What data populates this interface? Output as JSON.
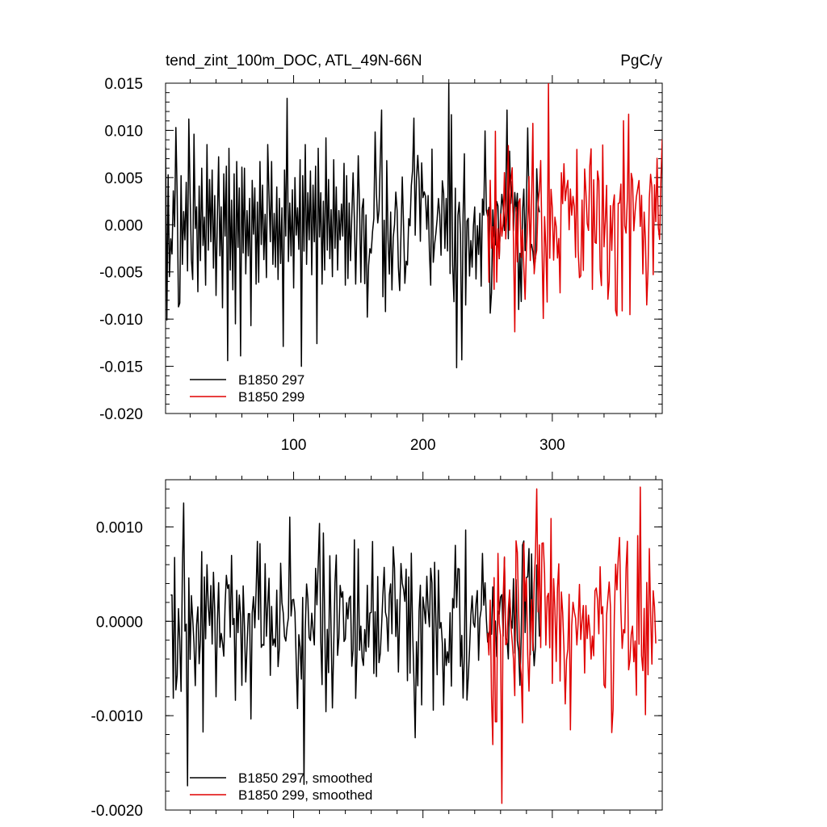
{
  "chart_data": [
    {
      "type": "line",
      "title_left": "tend_zint_100m_DOC, ATL_49N-66N",
      "title_right": "PgC/y",
      "xlim": [
        1,
        385
      ],
      "ylim": [
        -0.02,
        0.015
      ],
      "x_ticks": [
        100,
        200,
        300
      ],
      "x_tick_labels": [
        "100",
        "200",
        "300"
      ],
      "y_ticks": [
        -0.02,
        -0.015,
        -0.01,
        -0.005,
        0.0,
        0.005,
        0.01,
        0.015
      ],
      "y_tick_labels": [
        "-0.020",
        "-0.015",
        "-0.010",
        "-0.005",
        "0.000",
        "0.005",
        "0.010",
        "0.015"
      ],
      "grid": false,
      "legend_position": "bottom-left",
      "series": [
        {
          "name": "B1850 297",
          "color": "#000000",
          "x_start": 1,
          "values": [
            0.0082,
            -0.0101,
            0.0053,
            -0.0055,
            -0.0015,
            -0.0031,
            0.0036,
            -0.0002,
            0.0103,
            0.003,
            -0.0087,
            -0.0083,
            0.0052,
            -0.0042,
            0.0014,
            -0.0016,
            0.0045,
            -0.0049,
            0.0112,
            0.0033,
            -0.0037,
            -0.0058,
            0.0096,
            -0.0004,
            0.0019,
            -0.0071,
            0.0041,
            -0.0038,
            0.006,
            -0.0022,
            0.0008,
            -0.0064,
            0.0085,
            -0.0027,
            0.0048,
            -0.0018,
            0.0058,
            -0.0046,
            0.0031,
            -0.0075,
            0.0006,
            0.0072,
            -0.0033,
            0.0019,
            -0.0088,
            0.0054,
            -0.0012,
            0.0062,
            -0.0144,
            0.0081,
            -0.0048,
            0.0026,
            -0.0069,
            0.0054,
            -0.0105,
            0.0067,
            -0.0024,
            0.0039,
            -0.0139,
            0.0061,
            -0.003,
            0.006,
            -0.0052,
            0.0015,
            -0.0033,
            0.0028,
            -0.0107,
            0.0047,
            -0.001,
            0.0039,
            -0.0063,
            0.0024,
            -0.0061,
            0.0067,
            -0.0021,
            0.0042,
            -0.0037,
            0.0011,
            -0.0056,
            0.0085,
            0.0032,
            -0.0018,
            0.0067,
            -0.0042,
            0.0012,
            -0.0045,
            0.004,
            -0.0058,
            0.0028,
            -0.0041,
            0.0018,
            -0.0129,
            0.0058,
            -0.0012,
            0.0134,
            -0.0039,
            0.0023,
            -0.0033,
            0.0037,
            -0.0067,
            0.005,
            -0.0011,
            0.0018,
            -0.0026,
            0.0069,
            -0.015,
            0.0052,
            -0.0028,
            0.0085,
            -0.0042,
            0.0034,
            -0.0016,
            0.0057,
            -0.0053,
            0.0042,
            -0.0018,
            0.0062,
            -0.0126,
            0.0081,
            -0.0013,
            0.0034,
            -0.0063,
            0.0025,
            -0.0048,
            0.0092,
            -0.0027,
            0.0048,
            -0.0036,
            0.0016,
            -0.0055,
            0.0069,
            -0.0025,
            0.004,
            -0.0048,
            0.0015,
            -0.0016,
            0.0022,
            -0.0012,
            0.0065,
            -0.0064,
            0.0052,
            -0.0057,
            0.0023,
            -0.0038,
            0.0009,
            -0.0024,
            0.0002,
            -0.0002
          ],
          "x_end": 290,
          "note_values_len_ignored": true
        },
        {
          "name": "B1850 299",
          "color": "#e00000",
          "x_start": 250,
          "x_end": 385
        }
      ]
    },
    {
      "type": "line",
      "xlim": [
        1,
        385
      ],
      "ylim": [
        -0.002,
        0.0015
      ],
      "y_ticks": [
        -0.002,
        -0.001,
        0.0,
        0.001
      ],
      "y_tick_labels": [
        "-0.0020",
        "-0.0010",
        "0.0000",
        "0.0010"
      ],
      "x_ticks": [
        100,
        200,
        300
      ],
      "grid": false,
      "legend_position": "bottom-left",
      "series": [
        {
          "name": "B1850 297, smoothed",
          "color": "#000000",
          "x_start": 5,
          "x_end": 290
        },
        {
          "name": "B1850 299, smoothed",
          "color": "#e00000",
          "x_start": 250,
          "x_end": 380
        }
      ]
    }
  ]
}
